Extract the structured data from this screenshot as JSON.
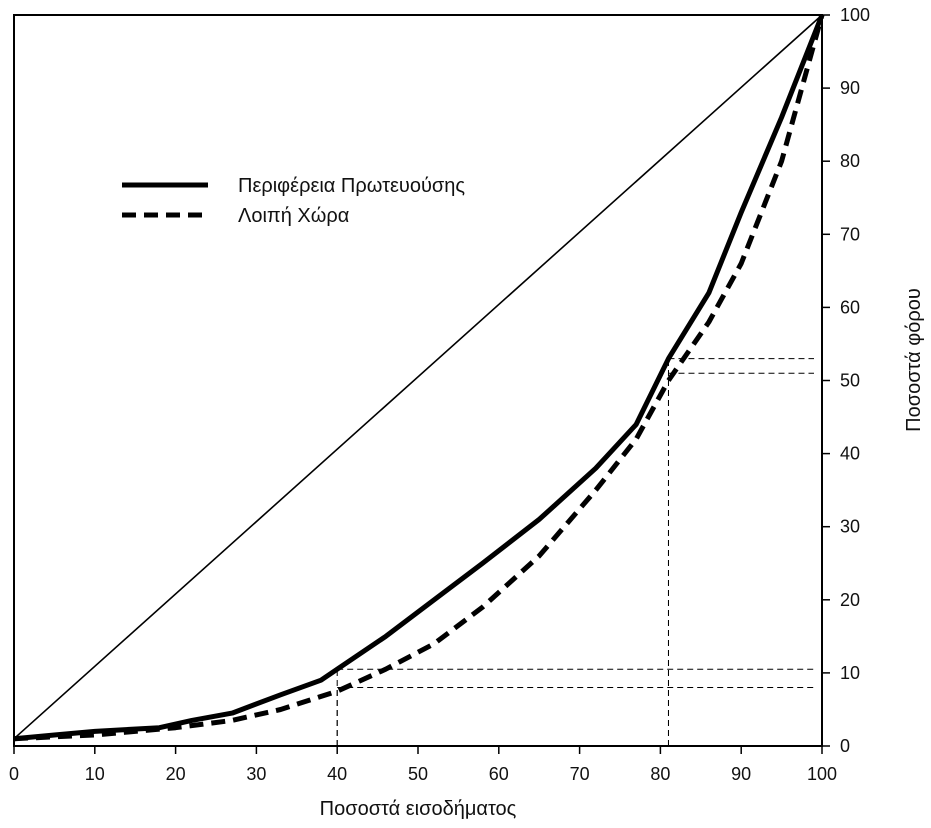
{
  "chart_data": {
    "type": "line",
    "xlabel": "Ποσοστά εισοδήματος",
    "ylabel": "Ποσοστά φόρου",
    "xlim": [
      0,
      100
    ],
    "ylim": [
      0,
      100
    ],
    "x_ticks": [
      0,
      10,
      20,
      30,
      40,
      50,
      60,
      70,
      80,
      90,
      100
    ],
    "y_ticks": [
      0,
      10,
      20,
      30,
      40,
      50,
      60,
      70,
      80,
      90,
      100
    ],
    "y_axis_position": "right",
    "legend_position": "top-left",
    "series": [
      {
        "name": "Περιφέρεια Πρωτευούσης",
        "style": "solid",
        "points": [
          [
            0,
            1
          ],
          [
            5,
            1.5
          ],
          [
            10,
            2
          ],
          [
            18,
            2.5
          ],
          [
            22,
            3.5
          ],
          [
            27,
            4.5
          ],
          [
            33,
            7
          ],
          [
            38,
            9
          ],
          [
            40,
            10.5
          ],
          [
            46,
            15
          ],
          [
            52,
            20
          ],
          [
            58,
            25
          ],
          [
            65,
            31
          ],
          [
            72,
            38
          ],
          [
            77,
            44
          ],
          [
            81,
            53
          ],
          [
            86,
            62
          ],
          [
            90,
            73
          ],
          [
            95,
            86
          ],
          [
            100,
            100
          ]
        ]
      },
      {
        "name": "Λοιπή Χώρα",
        "style": "dashed",
        "points": [
          [
            0,
            1
          ],
          [
            10,
            1.5
          ],
          [
            20,
            2.5
          ],
          [
            27,
            3.5
          ],
          [
            33,
            5
          ],
          [
            40,
            7.5
          ],
          [
            46,
            10.5
          ],
          [
            52,
            14
          ],
          [
            58,
            19
          ],
          [
            65,
            26
          ],
          [
            72,
            35
          ],
          [
            77,
            42
          ],
          [
            81,
            50
          ],
          [
            86,
            58
          ],
          [
            90,
            66
          ],
          [
            95,
            80
          ],
          [
            100,
            100
          ]
        ]
      },
      {
        "name": "",
        "style": "solid-thin",
        "points": [
          [
            0,
            1
          ],
          [
            100,
            100
          ]
        ]
      }
    ],
    "reference_lines": [
      {
        "x": 40,
        "y": 10.5
      },
      {
        "x": 40,
        "y": 8
      },
      {
        "x": 81,
        "y": 53
      },
      {
        "x": 81,
        "y": 51
      }
    ]
  }
}
